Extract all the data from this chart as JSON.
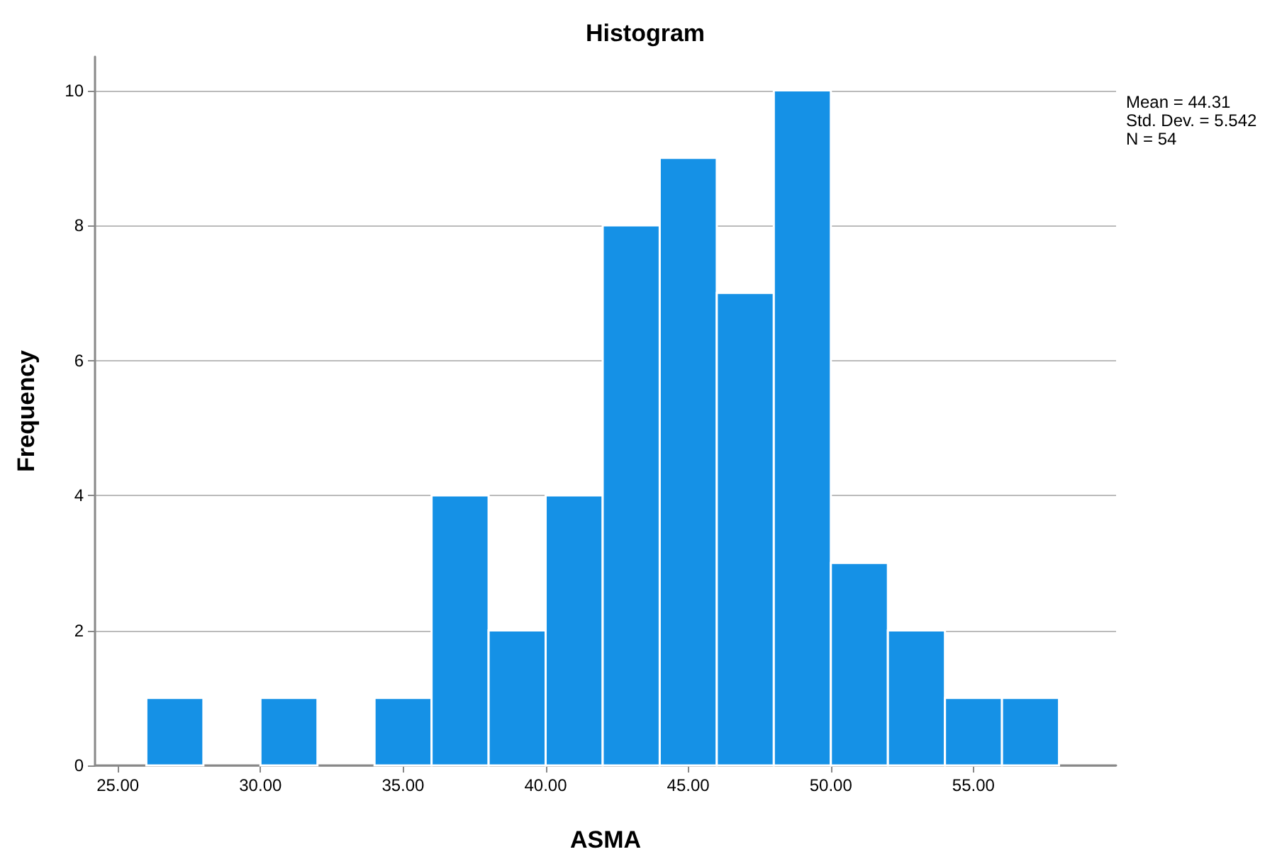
{
  "chart_data": {
    "type": "histogram",
    "title": "Histogram",
    "xlabel": "ASMA",
    "ylabel": "Frequency",
    "bins": [
      26,
      28,
      30,
      32,
      34,
      36,
      38,
      40,
      42,
      44,
      46,
      48,
      50,
      52,
      54,
      56,
      58
    ],
    "values": [
      1,
      0,
      1,
      0,
      1,
      4,
      2,
      4,
      8,
      9,
      7,
      10,
      3,
      2,
      1,
      1
    ],
    "color": "#1591e6",
    "xlim": [
      24.2,
      60
    ],
    "xticks": [
      {
        "value": 25,
        "label": "25.00"
      },
      {
        "value": 30,
        "label": "30.00"
      },
      {
        "value": 35,
        "label": "35.00"
      },
      {
        "value": 40,
        "label": "40.00"
      },
      {
        "value": 45,
        "label": "45.00"
      },
      {
        "value": 50,
        "label": "50.00"
      },
      {
        "value": 55,
        "label": "55.00"
      }
    ],
    "ylim": [
      0,
      10.5
    ],
    "yticks": [
      0,
      2,
      4,
      6,
      8,
      10
    ],
    "grid": "y",
    "legend": false,
    "annotations": [
      "Mean = 44.31",
      "Std. Dev. = 5.542",
      "N = 54"
    ]
  }
}
